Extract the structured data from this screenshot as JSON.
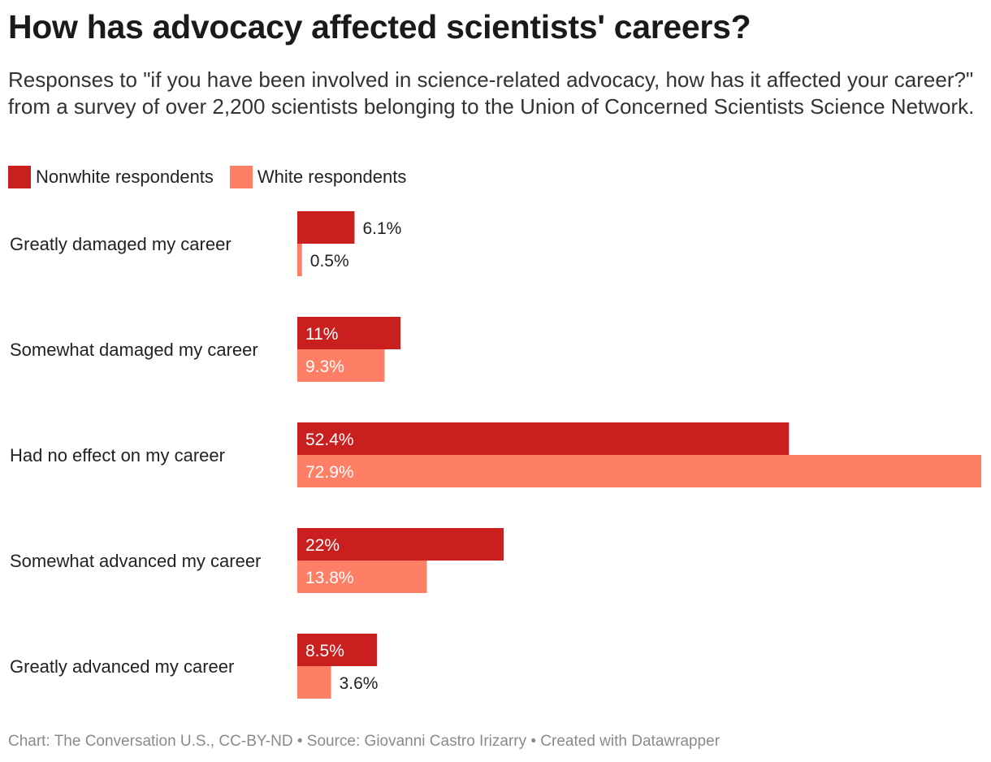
{
  "title": "How has advocacy affected scientists' careers?",
  "subtitle": "Responses to \"if you have been involved in science-related advocacy, how has it affected your career?\" from a survey of over 2,200 scientists belonging to the Union of Concerned Scientists Science Network.",
  "footer": "Chart: The Conversation U.S., CC-BY-ND • Source: Giovanni Castro Irizarry • Created with Datawrapper",
  "colors": {
    "nonwhite": "#c91f1f",
    "white": "#ff7f66"
  },
  "chart_data": {
    "type": "bar",
    "orientation": "horizontal",
    "categories": [
      "Greatly damaged my career",
      "Somewhat damaged my career",
      "Had no effect on my career",
      "Somewhat advanced my career",
      "Greatly advanced my career"
    ],
    "series": [
      {
        "name": "Nonwhite respondents",
        "values": [
          6.1,
          11,
          52.4,
          22,
          8.5
        ],
        "labels": [
          "6.1%",
          "11%",
          "52.4%",
          "22%",
          "8.5%"
        ],
        "color": "#c91f1f"
      },
      {
        "name": "White respondents",
        "values": [
          0.5,
          9.3,
          72.9,
          13.8,
          3.6
        ],
        "labels": [
          "0.5%",
          "9.3%",
          "72.9%",
          "13.8%",
          "3.6%"
        ],
        "color": "#ff7f66"
      }
    ],
    "xlim": [
      0,
      72.9
    ],
    "unit": "%",
    "grid": false,
    "legend": "top-left"
  }
}
